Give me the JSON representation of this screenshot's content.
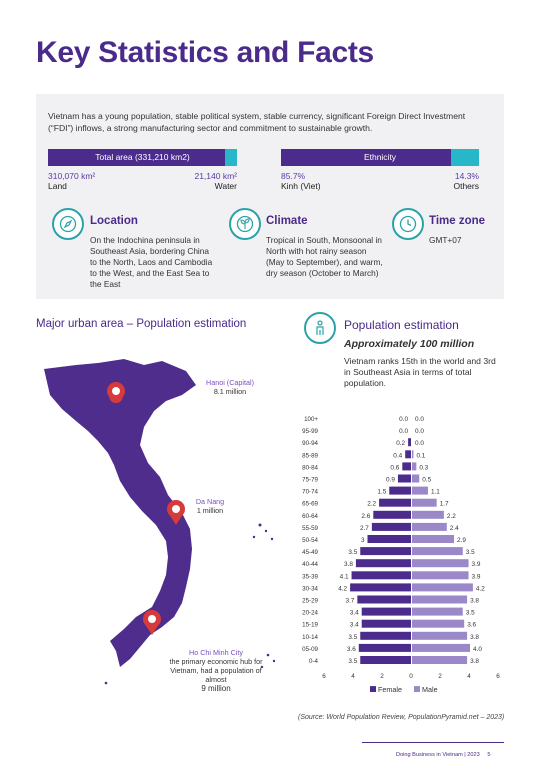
{
  "page_title": "Key Statistics and Facts",
  "intro": "Vietnam has a young population, stable political system, stable currency, significant Foreign Direct Investment (“FDI”) inflows, a strong manufacturing sector and commitment to sustainable growth.",
  "area": {
    "label": "Total area (331,210 km2)",
    "land_value": "310,070 km²",
    "land_label": "Land",
    "water_value": "21,140 km²",
    "water_label": "Water",
    "land_fraction": 0.936
  },
  "ethnicity": {
    "label": "Ethnicity",
    "kinh_value": "85.7%",
    "kinh_label": "Kinh (Viet)",
    "others_value": "14.3%",
    "others_label": "Others",
    "kinh_fraction": 0.857
  },
  "location": {
    "title": "Location",
    "text": "On the Indochina peninsula in Southeast Asia, bordering China to the North, Laos and Cambodia to the West, and the East Sea to the East"
  },
  "climate": {
    "title": "Climate",
    "text": "Tropical in South, Monsoonal in North with hot rainy season (May to September), and warm, dry season (October to March)"
  },
  "timezone": {
    "title": "Time zone",
    "text": "GMT+07"
  },
  "urban": {
    "heading": "Major urban area – Population estimation",
    "hanoi_name": "Hanoi (Capital)",
    "hanoi_pop": "8.1 million",
    "danang_name": "Da Nang",
    "danang_pop": "1 million",
    "hcmc_name": "Ho Chi Minh City",
    "hcmc_desc": "the primary economic hub for Vietnam, had a population of almost",
    "hcmc_pop": "9 million"
  },
  "population": {
    "heading": "Population estimation",
    "approx": "Approximately 100 million",
    "rank_text": "Vietnam ranks 15th in the world and 3rd in Southeast Asia in terms of total population."
  },
  "chart_data": {
    "type": "bar",
    "orientation": "horizontal-pyramid",
    "categories": [
      "100+",
      "95-99",
      "90-94",
      "85-89",
      "80-84",
      "75-79",
      "70-74",
      "65-69",
      "60-64",
      "55-59",
      "50-54",
      "45-49",
      "40-44",
      "35-39",
      "30-34",
      "25-29",
      "20-24",
      "15-19",
      "10-14",
      "05-09",
      "0-4"
    ],
    "series": [
      {
        "name": "Female",
        "color": "#4b2b8c",
        "values": [
          0.0,
          0.0,
          0.2,
          0.4,
          0.6,
          0.9,
          1.5,
          2.2,
          2.6,
          2.7,
          3,
          3.5,
          3.8,
          4.1,
          4.2,
          3.7,
          3.4,
          3.4,
          3.5,
          3.6,
          3.5
        ]
      },
      {
        "name": "Male",
        "color": "#9b88c8",
        "values": [
          0.0,
          0.0,
          0.0,
          0.1,
          0.3,
          0.5,
          1.1,
          1.7,
          2.2,
          2.4,
          2.9,
          3.5,
          3.9,
          3.9,
          4.2,
          3.8,
          3.5,
          3.6,
          3.8,
          4.0,
          3.8
        ]
      }
    ],
    "female_labels": [
      "0.0",
      "0.0",
      "0.2",
      "0.4",
      "0.6",
      "0.9",
      "1.5",
      "2.2",
      "2.6",
      "2.7",
      "3",
      "3.5",
      "3.8",
      "4.1",
      "4.2",
      "3.7",
      "3.4",
      "3.4",
      "3.5",
      "3.6",
      "3.5"
    ],
    "male_labels": [
      "0.0",
      "0.0",
      "0.0",
      "0.1",
      "0.3",
      "0.5",
      "1.1",
      "1.7",
      "2.2",
      "2.4",
      "2.9",
      "3.5",
      "3.9",
      "3.9",
      "4.2",
      "3.8",
      "3.5",
      "3.6",
      "3.8",
      "4.0",
      "3.8"
    ],
    "xticks": [
      "6",
      "4",
      "2",
      "0",
      "2",
      "4",
      "6"
    ],
    "xlim": [
      -6,
      6
    ],
    "legend": [
      "Female",
      "Male"
    ],
    "legend_position": "bottom"
  },
  "source": "(Source: World Population Review, PopulationPyramid.net – 2023)",
  "footer": "Doing Business in Vietnam | 2023",
  "page_number": "5",
  "colors": {
    "purple": "#4b2b8c",
    "teal": "#27b7c9",
    "light_purple": "#9b88c8",
    "map": "#4e2d8d"
  }
}
